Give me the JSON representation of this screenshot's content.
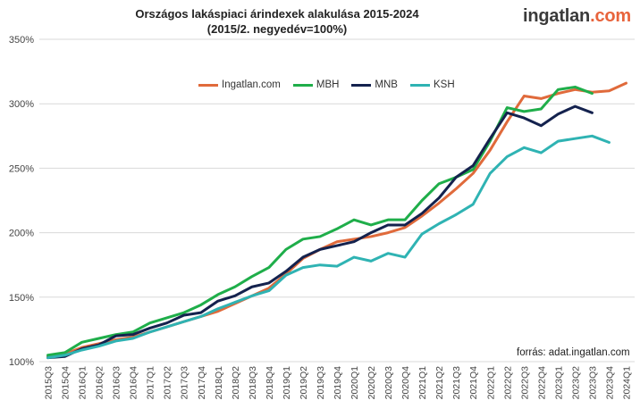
{
  "brand": {
    "name_main": "ingatlan",
    "name_dot": ".",
    "name_tld": "com",
    "accent_color": "#e8643c"
  },
  "source_text": "forrás: adat.ingatlan.com",
  "chart_data": {
    "type": "line",
    "title": "Országos lakáspiaci árindexek alakulása 2015-2024",
    "subtitle": "(2015/2. negyedév=100%)",
    "xlabel": "",
    "ylabel": "",
    "ylim": [
      100,
      350
    ],
    "yticks": [
      100,
      150,
      200,
      250,
      300,
      350
    ],
    "ytick_labels": [
      "100%",
      "150%",
      "200%",
      "250%",
      "300%",
      "350%"
    ],
    "grid": true,
    "legend_position": "top-left",
    "categories": [
      "2015Q3",
      "2015Q4",
      "2016Q1",
      "2016Q2",
      "2016Q3",
      "2016Q4",
      "2017Q1",
      "2017Q2",
      "2017Q3",
      "2017Q4",
      "2018Q1",
      "2018Q2",
      "2018Q3",
      "2018Q4",
      "2019Q1",
      "2019Q2",
      "2019Q3",
      "2019Q4",
      "2020Q1",
      "2020Q2",
      "2020Q3",
      "2020Q4",
      "2021Q1",
      "2021Q2",
      "2021Q3",
      "2021Q4",
      "2022Q1",
      "2022Q2",
      "2022Q3",
      "2022Q4",
      "2023Q1",
      "2023Q2",
      "2023Q3",
      "2023Q4",
      "2024Q1"
    ],
    "series": [
      {
        "name": "Ingatlan.com",
        "color": "#e06a3b",
        "values": [
          104,
          106,
          111,
          114,
          117,
          119,
          123,
          127,
          131,
          135,
          139,
          145,
          151,
          157,
          168,
          180,
          187,
          193,
          195,
          197,
          200,
          204,
          213,
          223,
          234,
          246,
          264,
          286,
          306,
          304,
          308,
          311,
          309,
          310,
          316
        ]
      },
      {
        "name": "MBH",
        "color": "#1fae4a",
        "values": [
          105,
          107,
          115,
          118,
          121,
          123,
          130,
          134,
          138,
          144,
          152,
          158,
          166,
          173,
          187,
          195,
          197,
          203,
          210,
          206,
          210,
          210,
          225,
          238,
          243,
          249,
          271,
          297,
          294,
          296,
          311,
          313,
          308,
          null,
          null
        ]
      },
      {
        "name": "MNB",
        "color": "#14224e",
        "values": [
          103,
          104,
          110,
          113,
          120,
          121,
          126,
          130,
          136,
          138,
          147,
          151,
          158,
          161,
          170,
          181,
          187,
          190,
          193,
          200,
          206,
          206,
          215,
          227,
          243,
          252,
          273,
          293,
          289,
          283,
          292,
          298,
          293,
          null,
          null
        ]
      },
      {
        "name": "KSH",
        "color": "#2fb3b3",
        "values": [
          103,
          105,
          109,
          112,
          116,
          118,
          123,
          127,
          131,
          135,
          141,
          146,
          151,
          155,
          167,
          173,
          175,
          174,
          181,
          178,
          184,
          181,
          199,
          207,
          214,
          222,
          246,
          259,
          266,
          262,
          271,
          273,
          275,
          270,
          null
        ]
      }
    ]
  }
}
